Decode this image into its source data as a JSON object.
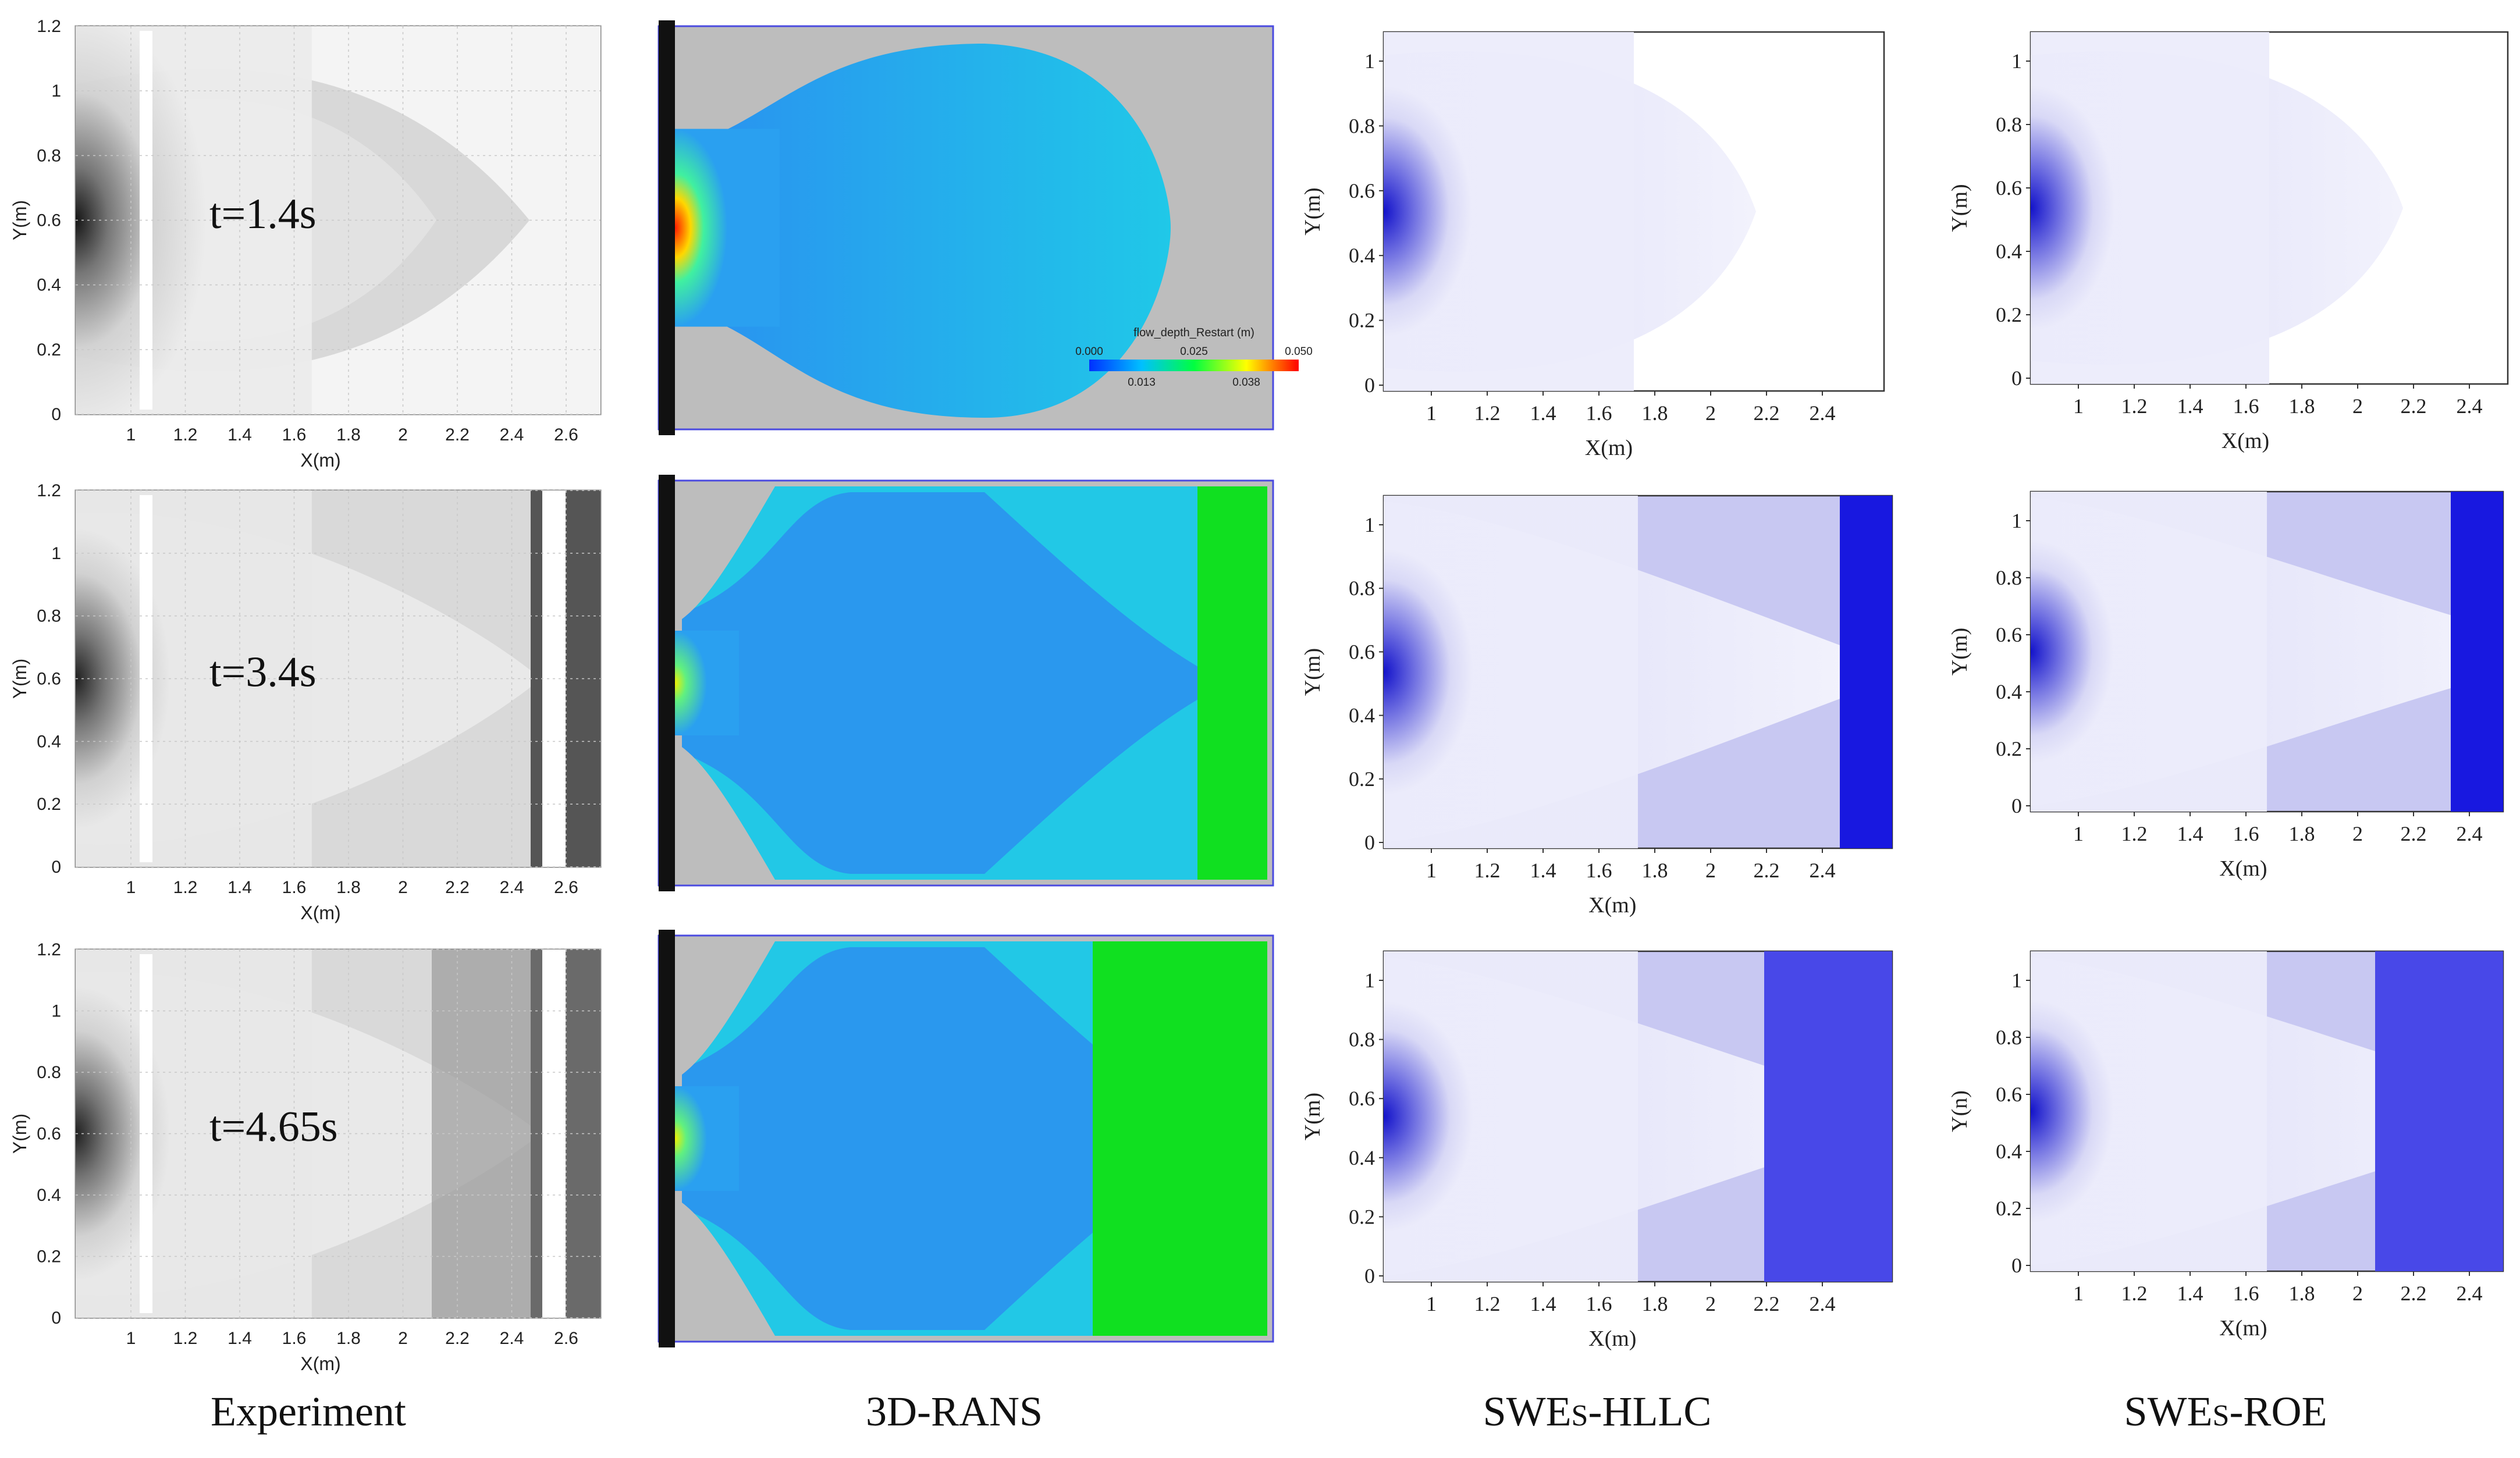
{
  "columns": {
    "experiment": "Experiment",
    "rans": "3D-RANS",
    "hllc_main": "SWE",
    "hllc_small": "S",
    "hllc_tail": "-HLLC",
    "roe_main": "SWE",
    "roe_small": "S",
    "roe_tail": "-ROE"
  },
  "times": [
    "t=1.4s",
    "t=3.4s",
    "t=4.65s"
  ],
  "experiment_axes": {
    "xlabel": "X(m)",
    "ylabel": "Y(m)",
    "xticks": [
      "1",
      "1.2",
      "1.4",
      "1.6",
      "1.8",
      "2",
      "2.2",
      "2.4",
      "2.6"
    ],
    "yticks": [
      "0",
      "0.2",
      "0.4",
      "0.6",
      "0.8",
      "1",
      "1.2"
    ]
  },
  "swe_axes": {
    "xlabel": "X(m)",
    "ylabel": "Y(m)",
    "ylabel_roe_row3": "Y(n)",
    "xticks": [
      "1",
      "1.2",
      "1.4",
      "1.6",
      "1.8",
      "2",
      "2.2",
      "2.4"
    ],
    "yticks": [
      "0",
      "0.2",
      "0.4",
      "0.6",
      "0.8",
      "1"
    ]
  },
  "rans_legend": {
    "title": "flow_depth_Restart (m)",
    "top_ticks": [
      "0.000",
      "0.025",
      "0.050"
    ],
    "bottom_ticks": [
      "0.013",
      "0.038"
    ]
  },
  "colors": {
    "rans_background": "#bdbdbd",
    "rans_flow": "#2aa0f0",
    "rans_shallow": "#14e0e0",
    "rans_green": "#10e020",
    "swe_deep": "#1010d0",
    "swe_mid": "#8a8ae8",
    "swe_light": "#ececfb"
  }
}
